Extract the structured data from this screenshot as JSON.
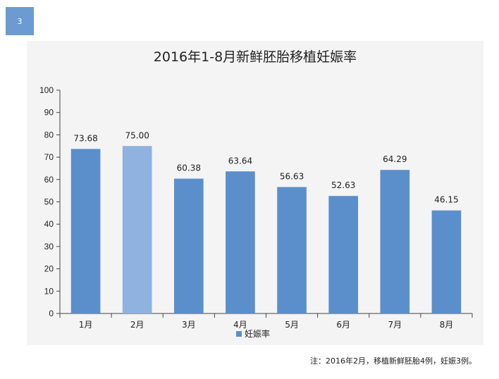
{
  "slide": {
    "number": "3"
  },
  "note": "注：2016年2月，移植新鲜胚胎4例，妊娠3例。",
  "colors": {
    "bar": "#5b8fcb",
    "bar_highlight": "#8fb2e0",
    "axis": "#444444",
    "badge": "#6b9bd0"
  },
  "chart_data": {
    "type": "bar",
    "title": "2016年1-8月新鲜胚胎移植妊娠率",
    "categories": [
      "1月",
      "2月",
      "3月",
      "4月",
      "5月",
      "6月",
      "7月",
      "8月"
    ],
    "series": [
      {
        "name": "妊娠率",
        "values": [
          73.68,
          75.0,
          60.38,
          63.64,
          56.63,
          52.63,
          64.29,
          46.15
        ]
      }
    ],
    "data_labels": [
      "73.68",
      "75.00",
      "60.38",
      "63.64",
      "56.63",
      "52.63",
      "64.29",
      "46.15"
    ],
    "highlight_index": 1,
    "ylim": [
      0,
      100
    ],
    "yticks": [
      0,
      10,
      20,
      30,
      40,
      50,
      60,
      70,
      80,
      90,
      100
    ],
    "grid": false,
    "legend": "bottom-center",
    "xlabel": "",
    "ylabel": ""
  }
}
